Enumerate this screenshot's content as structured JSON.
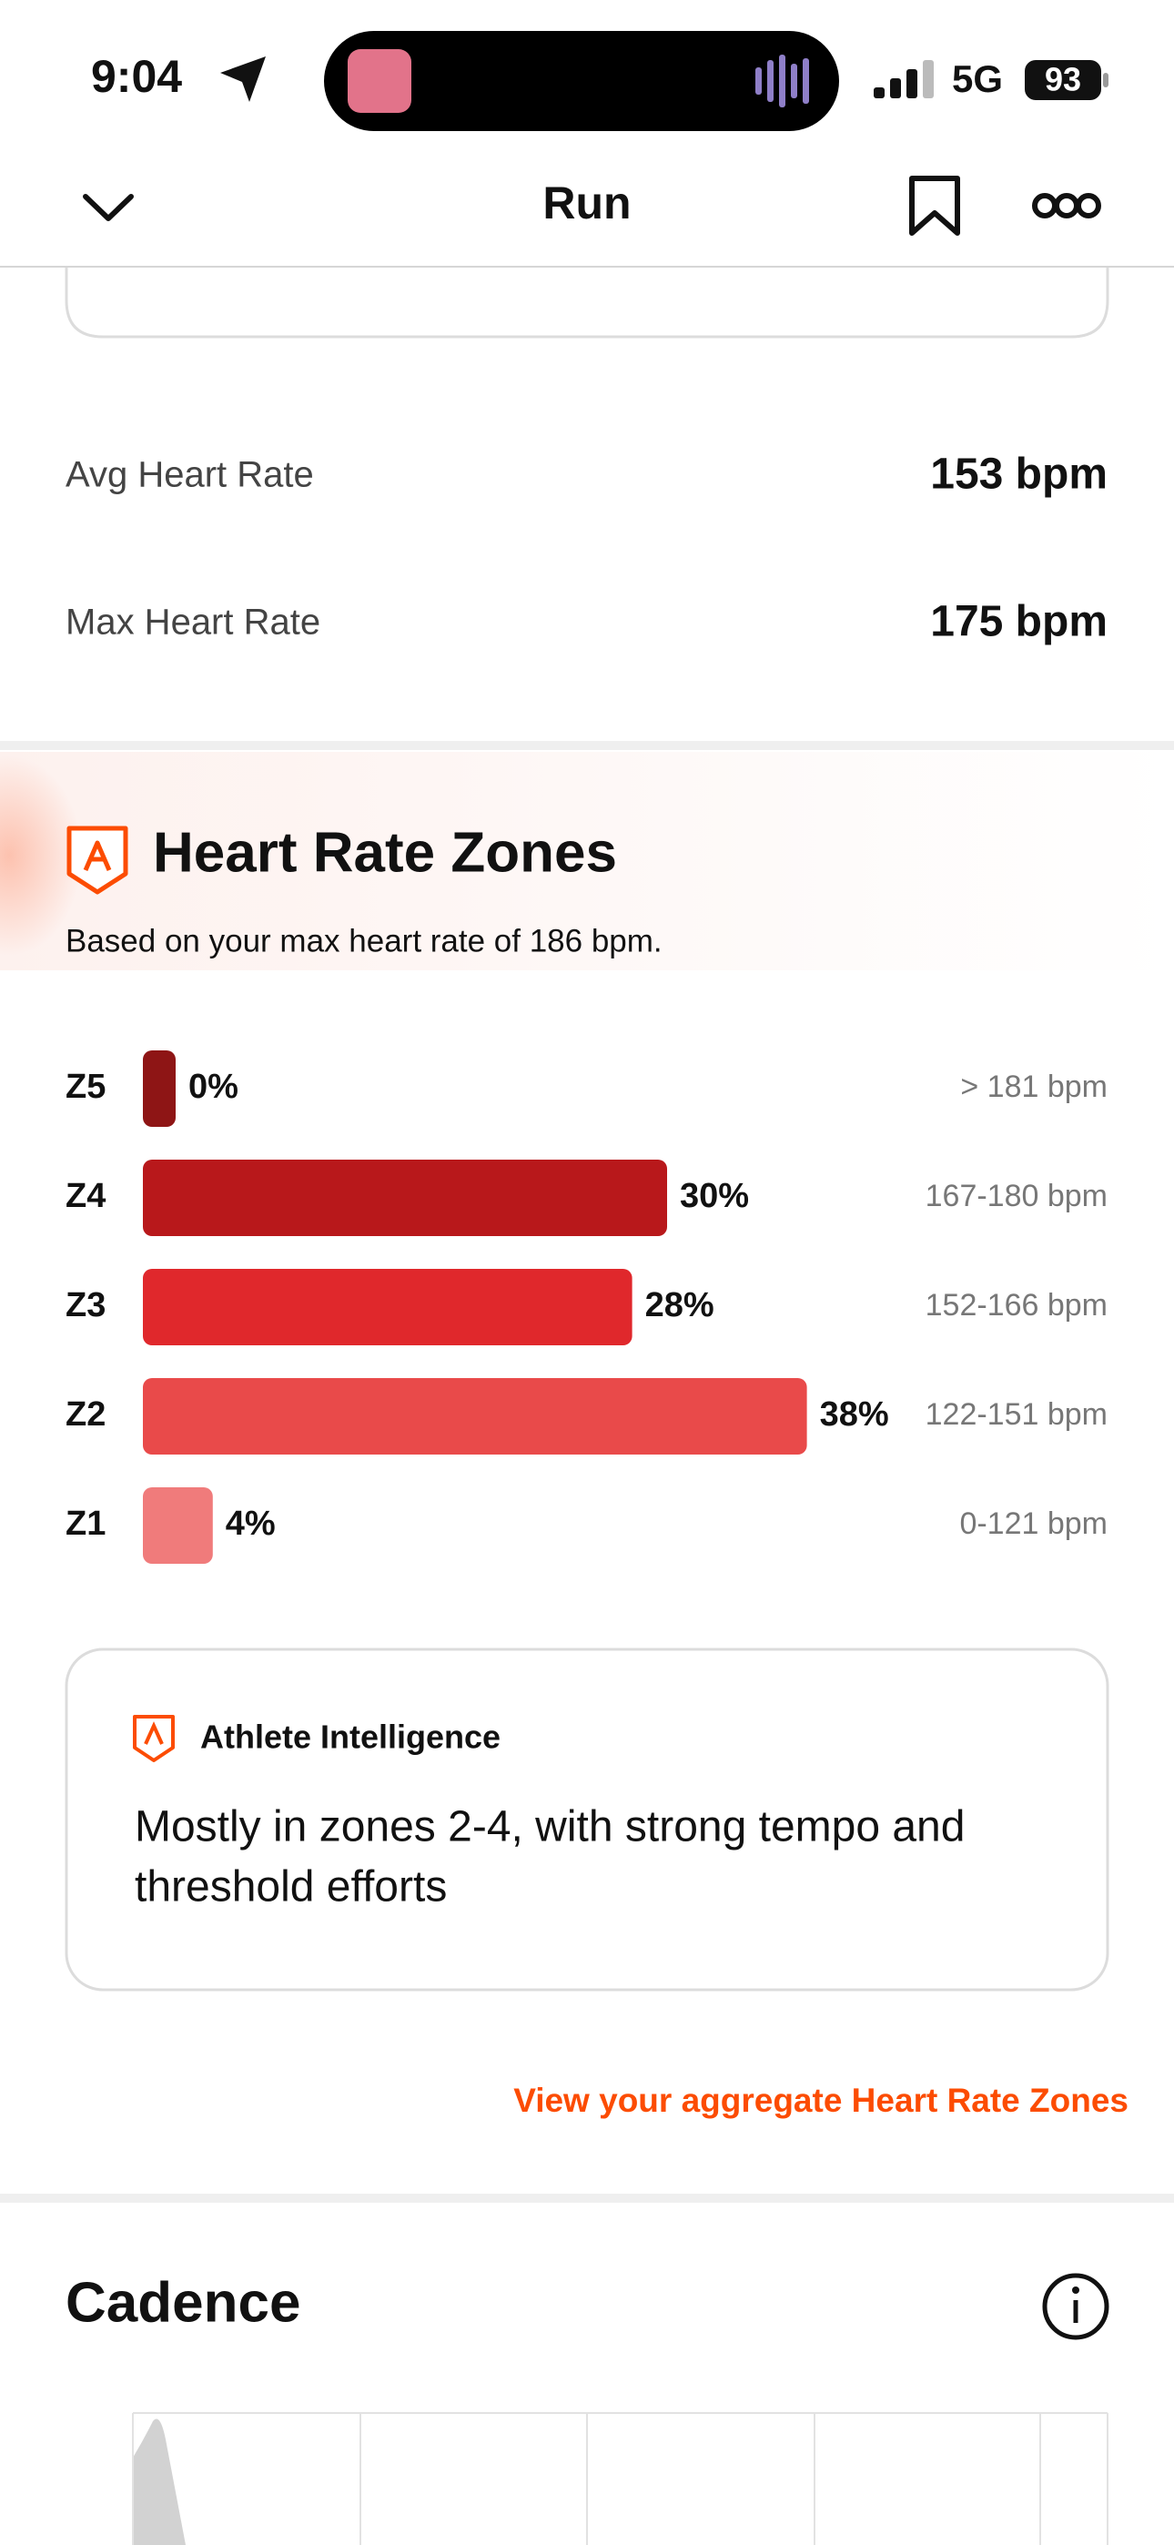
{
  "status": {
    "time": "9:04",
    "network": "5G",
    "battery": "93"
  },
  "nav": {
    "title": "Run"
  },
  "stats": [
    {
      "label": "Avg Heart Rate",
      "value": "153 bpm"
    },
    {
      "label": "Max Heart Rate",
      "value": "175 bpm"
    }
  ],
  "heart_rate_zones": {
    "title": "Heart Rate Zones",
    "subtitle": "Based on your max heart rate of 186 bpm.",
    "zones": [
      "Z5",
      "Z4",
      "Z3",
      "Z2",
      "Z1"
    ],
    "values": [
      0,
      30,
      28,
      38,
      4
    ],
    "value_labels": [
      "0%",
      "30%",
      "28%",
      "38%",
      "4%"
    ],
    "ranges": [
      "> 181 bpm",
      "167-180 bpm",
      "152-166 bpm",
      "122-151 bpm",
      "0-121 bpm"
    ],
    "colors": [
      "#8e1515",
      "#b8181b",
      "#e0282c",
      "#e94a4a",
      "#f07b7b"
    ]
  },
  "athlete_intelligence": {
    "title": "Athlete Intelligence",
    "lines": [
      "Mostly in zones 2-4, with strong tempo and",
      "threshold efforts"
    ]
  },
  "link": "View your aggregate Heart Rate Zones",
  "cadence": {
    "title": "Cadence"
  }
}
